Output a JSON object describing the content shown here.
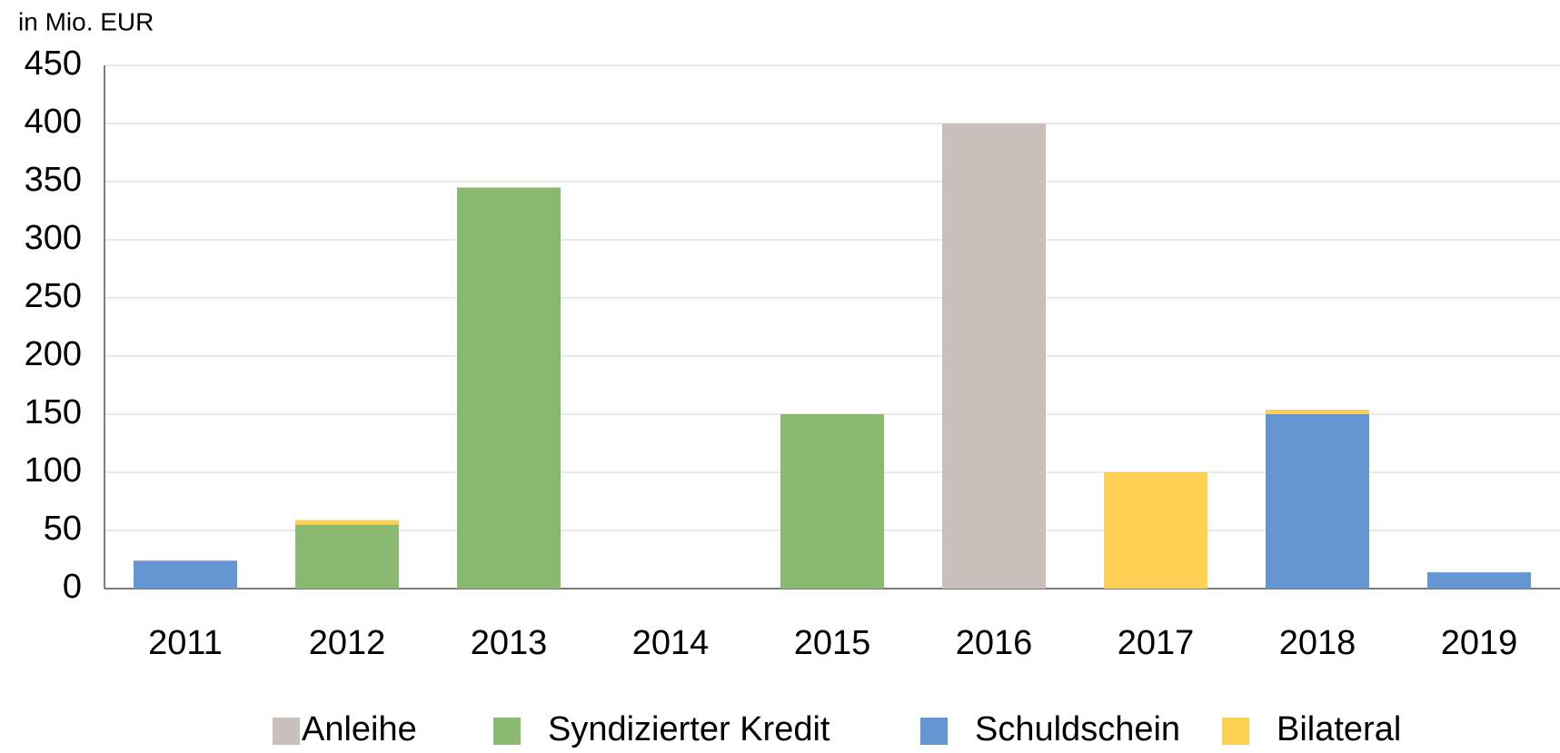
{
  "chart_data": {
    "type": "bar",
    "stacked": true,
    "y_label": "in Mio. EUR",
    "categories": [
      "2011",
      "2012",
      "2013",
      "2014",
      "2015",
      "2016",
      "2017",
      "2018",
      "2019"
    ],
    "series": [
      {
        "name": "Anleihe",
        "color": "#c9c0bb",
        "values": [
          0,
          0,
          0,
          0,
          0,
          400,
          0,
          0,
          0
        ]
      },
      {
        "name": "Syndizierter Kredit",
        "color": "#8aba70",
        "values": [
          0,
          55,
          345,
          0,
          150,
          0,
          0,
          0,
          0
        ]
      },
      {
        "name": "Schuldschein",
        "color": "#6497d2",
        "values": [
          24,
          0,
          0,
          0,
          0,
          0,
          0,
          150,
          14
        ]
      },
      {
        "name": "Bilateral",
        "color": "#fed154",
        "values": [
          0,
          4,
          0,
          0,
          0,
          0,
          100,
          4,
          0
        ]
      }
    ],
    "ylim": [
      0,
      450
    ],
    "yticks": [
      0,
      50,
      100,
      150,
      200,
      250,
      300,
      350,
      400,
      450
    ],
    "grid": true,
    "legend": "bottom"
  }
}
